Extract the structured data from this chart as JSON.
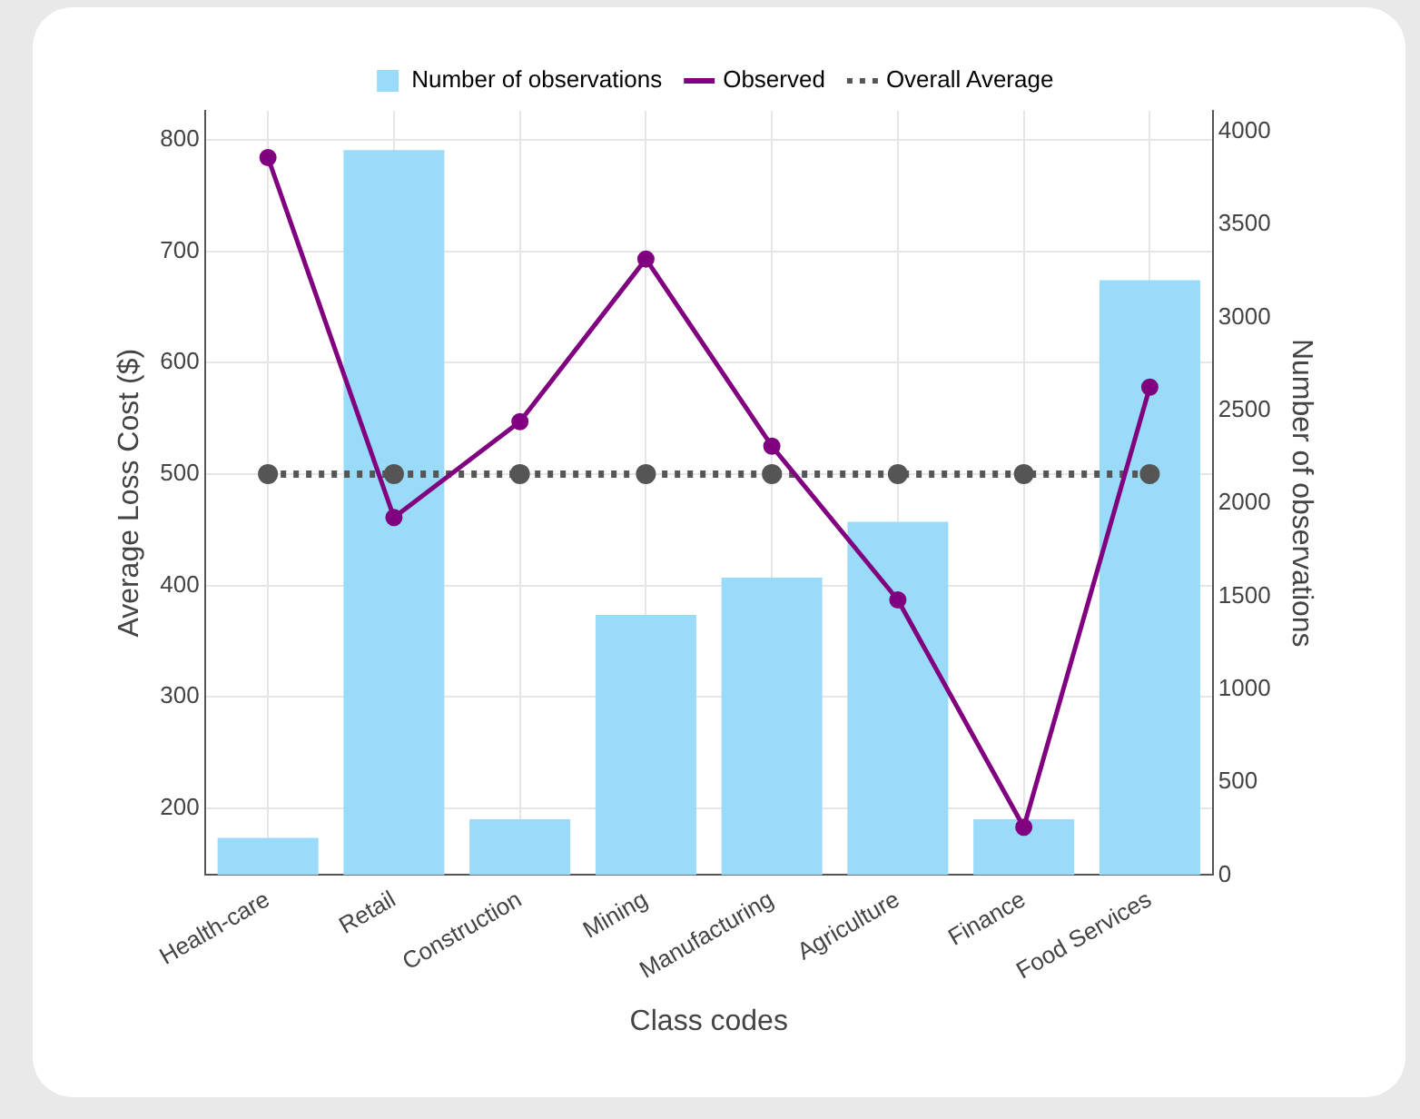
{
  "chart_data": {
    "type": "bar",
    "xlabel": "Class codes",
    "ylabel": "Average Loss Cost ($)",
    "y2label": "Number of observations",
    "categories": [
      "Health-care",
      "Retail",
      "Construction",
      "Mining",
      "Manufacturing",
      "Agriculture",
      "Finance",
      "Food Services"
    ],
    "series": [
      {
        "name": "Number of observations",
        "axis": "y2",
        "color": "#99dbf8",
        "values": [
          200,
          3900,
          300,
          1400,
          1600,
          1900,
          300,
          3200
        ]
      },
      {
        "name": "Observed",
        "type": "line",
        "color": "#800080",
        "marker": "circle",
        "line_style": "solid",
        "values": [
          784,
          461,
          547,
          693,
          525,
          387,
          183,
          578
        ]
      },
      {
        "name": "Overall Average",
        "type": "line",
        "color": "#555555",
        "marker": "circle",
        "line_style": "dotted",
        "values": [
          500,
          500,
          500,
          500,
          500,
          500,
          500,
          500
        ]
      }
    ],
    "ylim": [
      140,
      826
    ],
    "yticks": [
      200,
      300,
      400,
      500,
      600,
      700,
      800
    ],
    "y2lim": [
      0,
      4111
    ],
    "y2ticks": [
      0,
      500,
      1000,
      1500,
      2000,
      2500,
      3000,
      3500,
      4000
    ],
    "grid": true,
    "legend": "top"
  }
}
